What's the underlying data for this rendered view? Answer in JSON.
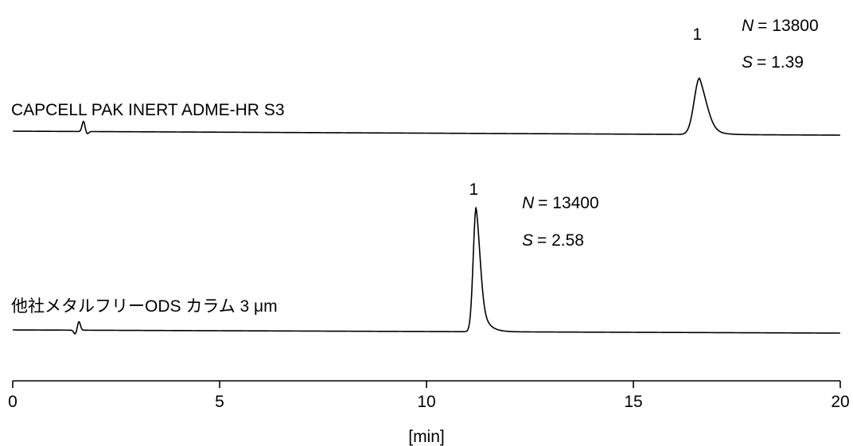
{
  "chart_data": {
    "type": "line",
    "title": "",
    "xlabel": "[min]",
    "ylabel": "",
    "xlim": [
      0,
      20
    ],
    "x_ticks": [
      0,
      5,
      10,
      15,
      20
    ],
    "grid": false,
    "legend": "none",
    "line_color": "#000000",
    "series": [
      {
        "name": "CAPCELL PAK INERT ADME-HR S3",
        "peak_label": "1",
        "peak_time": 16.6,
        "injection_time": 1.75,
        "N_symbol": "N",
        "N_value": "= 13800",
        "S_symbol": "S",
        "S_value": "= 1.39"
      },
      {
        "name": "他社メタルフリーODS カラム 3 μm",
        "peak_label": "1",
        "peak_time": 11.2,
        "injection_time": 1.55,
        "N_symbol": "N",
        "N_value": "= 13400",
        "S_symbol": "S",
        "S_value": "= 2.58"
      }
    ]
  }
}
